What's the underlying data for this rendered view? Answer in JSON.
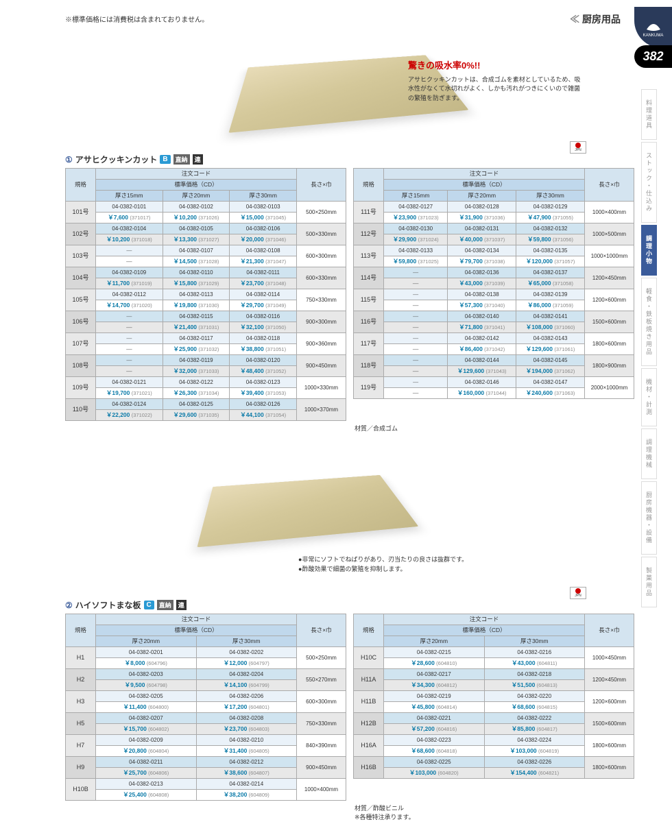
{
  "topNote": "※標準価格には消費税は含まれておりません。",
  "headerCategory": "厨房用品",
  "pageNumber": "382",
  "brandLabel": "KANKUMA",
  "promo": {
    "title": "驚きの吸水率0%!!",
    "text": "アサヒクッキンカットは、合成ゴムを素材としているため、吸水性がなくて水切れがよく、しかも汚れがつきにくいので雑菌の繁殖を防ぎます。"
  },
  "sideTabs": [
    "料理道具",
    "ストック・仕込み",
    "調理小物",
    "軽食・鉄板焼き用品",
    "機材・計測",
    "調理機械",
    "厨房機器・設備",
    "製菓用品"
  ],
  "sideTabActive": 2,
  "section1": {
    "num": "①",
    "title": "アサヒクッキンカット",
    "badge": "B",
    "tags": [
      "直納",
      "連"
    ]
  },
  "section2": {
    "num": "②",
    "title": "ハイソフトまな板",
    "badge": "C",
    "tags": [
      "直納",
      "連"
    ]
  },
  "headers": {
    "spec": "規格",
    "orderCode": "注文コード",
    "stdPrice": "標準価格（CD）",
    "size": "長さ×巾",
    "t15": "厚さ15mm",
    "t20": "厚さ20mm",
    "t30": "厚さ30mm"
  },
  "bullets": [
    "非常にソフトでねばりがあり、刃当たりの良さは抜群です。",
    "酢酸効果で細菌の繁殖を抑制します。"
  ],
  "material1": "材質／合成ゴム",
  "material2": "材質／酢酸ビニル\n※各種特注承ります。",
  "table1L": [
    {
      "spec": "101号",
      "size": "500×250mm",
      "c": [
        [
          "04-0382-0101",
          "04-0382-0102",
          "04-0382-0103"
        ],
        [
          "7,600",
          "10,200",
          "15,000"
        ],
        [
          "371017",
          "371026",
          "371045"
        ]
      ]
    },
    {
      "spec": "102号",
      "size": "500×330mm",
      "c": [
        [
          "04-0382-0104",
          "04-0382-0105",
          "04-0382-0106"
        ],
        [
          "10,200",
          "13,300",
          "20,000"
        ],
        [
          "371018",
          "371027",
          "371046"
        ]
      ]
    },
    {
      "spec": "103号",
      "size": "600×300mm",
      "c": [
        [
          "―",
          "04-0382-0107",
          "04-0382-0108"
        ],
        [
          "―",
          "14,500",
          "21,300"
        ],
        [
          "",
          "371028",
          "371047"
        ]
      ]
    },
    {
      "spec": "104号",
      "size": "600×330mm",
      "c": [
        [
          "04-0382-0109",
          "04-0382-0110",
          "04-0382-0111"
        ],
        [
          "11,700",
          "15,800",
          "23,700"
        ],
        [
          "371019",
          "371029",
          "371048"
        ]
      ]
    },
    {
      "spec": "105号",
      "size": "750×330mm",
      "c": [
        [
          "04-0382-0112",
          "04-0382-0113",
          "04-0382-0114"
        ],
        [
          "14,700",
          "19,800",
          "29,700"
        ],
        [
          "371020",
          "371030",
          "371049"
        ]
      ]
    },
    {
      "spec": "106号",
      "size": "900×300mm",
      "c": [
        [
          "―",
          "04-0382-0115",
          "04-0382-0116"
        ],
        [
          "―",
          "21,400",
          "32,100"
        ],
        [
          "",
          "371031",
          "371050"
        ]
      ]
    },
    {
      "spec": "107号",
      "size": "900×360mm",
      "c": [
        [
          "―",
          "04-0382-0117",
          "04-0382-0118"
        ],
        [
          "―",
          "25,900",
          "38,800"
        ],
        [
          "",
          "371032",
          "371051"
        ]
      ]
    },
    {
      "spec": "108号",
      "size": "900×450mm",
      "c": [
        [
          "―",
          "04-0382-0119",
          "04-0382-0120"
        ],
        [
          "―",
          "32,000",
          "48,400"
        ],
        [
          "",
          "371033",
          "371052"
        ]
      ]
    },
    {
      "spec": "109号",
      "size": "1000×330mm",
      "c": [
        [
          "04-0382-0121",
          "04-0382-0122",
          "04-0382-0123"
        ],
        [
          "19,700",
          "26,300",
          "39,400"
        ],
        [
          "371021",
          "371034",
          "371053"
        ]
      ]
    },
    {
      "spec": "110号",
      "size": "1000×370mm",
      "c": [
        [
          "04-0382-0124",
          "04-0382-0125",
          "04-0382-0126"
        ],
        [
          "22,200",
          "29,600",
          "44,100"
        ],
        [
          "371022",
          "371035",
          "371054"
        ]
      ]
    }
  ],
  "table1R": [
    {
      "spec": "111号",
      "size": "1000×400mm",
      "c": [
        [
          "04-0382-0127",
          "04-0382-0128",
          "04-0382-0129"
        ],
        [
          "23,900",
          "31,900",
          "47,900"
        ],
        [
          "371023",
          "371036",
          "371055"
        ]
      ]
    },
    {
      "spec": "112号",
      "size": "1000×500mm",
      "c": [
        [
          "04-0382-0130",
          "04-0382-0131",
          "04-0382-0132"
        ],
        [
          "29,900",
          "40,000",
          "59,800"
        ],
        [
          "371024",
          "371037",
          "371056"
        ]
      ]
    },
    {
      "spec": "113号",
      "size": "1000×1000mm",
      "c": [
        [
          "04-0382-0133",
          "04-0382-0134",
          "04-0382-0135"
        ],
        [
          "59,800",
          "79,700",
          "120,000"
        ],
        [
          "371025",
          "371038",
          "371057"
        ]
      ]
    },
    {
      "spec": "114号",
      "size": "1200×450mm",
      "c": [
        [
          "―",
          "04-0382-0136",
          "04-0382-0137"
        ],
        [
          "―",
          "43,000",
          "65,000"
        ],
        [
          "",
          "371039",
          "371058"
        ]
      ]
    },
    {
      "spec": "115号",
      "size": "1200×600mm",
      "c": [
        [
          "―",
          "04-0382-0138",
          "04-0382-0139"
        ],
        [
          "―",
          "57,300",
          "86,000"
        ],
        [
          "",
          "371040",
          "371059"
        ]
      ]
    },
    {
      "spec": "116号",
      "size": "1500×600mm",
      "c": [
        [
          "―",
          "04-0382-0140",
          "04-0382-0141"
        ],
        [
          "―",
          "71,800",
          "108,000"
        ],
        [
          "",
          "371041",
          "371060"
        ]
      ]
    },
    {
      "spec": "117号",
      "size": "1800×600mm",
      "c": [
        [
          "―",
          "04-0382-0142",
          "04-0382-0143"
        ],
        [
          "―",
          "86,400",
          "129,600"
        ],
        [
          "",
          "371042",
          "371061"
        ]
      ]
    },
    {
      "spec": "118号",
      "size": "1800×900mm",
      "c": [
        [
          "―",
          "04-0382-0144",
          "04-0382-0145"
        ],
        [
          "―",
          "129,600",
          "194,000"
        ],
        [
          "",
          "371043",
          "371062"
        ]
      ]
    },
    {
      "spec": "119号",
      "size": "2000×1000mm",
      "c": [
        [
          "―",
          "04-0382-0146",
          "04-0382-0147"
        ],
        [
          "―",
          "160,000",
          "240,600"
        ],
        [
          "",
          "371044",
          "371063"
        ]
      ]
    }
  ],
  "table2L": [
    {
      "spec": "H1",
      "size": "500×250mm",
      "c": [
        [
          "04-0382-0201",
          "04-0382-0202"
        ],
        [
          "8,000",
          "12,000"
        ],
        [
          "604796",
          "604797"
        ]
      ]
    },
    {
      "spec": "H2",
      "size": "550×270mm",
      "c": [
        [
          "04-0382-0203",
          "04-0382-0204"
        ],
        [
          "9,500",
          "14,100"
        ],
        [
          "604798",
          "604799"
        ]
      ]
    },
    {
      "spec": "H3",
      "size": "600×300mm",
      "c": [
        [
          "04-0382-0205",
          "04-0382-0206"
        ],
        [
          "11,400",
          "17,200"
        ],
        [
          "604800",
          "604801"
        ]
      ]
    },
    {
      "spec": "H5",
      "size": "750×330mm",
      "c": [
        [
          "04-0382-0207",
          "04-0382-0208"
        ],
        [
          "15,700",
          "23,700"
        ],
        [
          "604802",
          "604803"
        ]
      ]
    },
    {
      "spec": "H7",
      "size": "840×390mm",
      "c": [
        [
          "04-0382-0209",
          "04-0382-0210"
        ],
        [
          "20,800",
          "31,400"
        ],
        [
          "604804",
          "604805"
        ]
      ]
    },
    {
      "spec": "H9",
      "size": "900×450mm",
      "c": [
        [
          "04-0382-0211",
          "04-0382-0212"
        ],
        [
          "25,700",
          "38,600"
        ],
        [
          "604806",
          "604807"
        ]
      ]
    },
    {
      "spec": "H10B",
      "size": "1000×400mm",
      "c": [
        [
          "04-0382-0213",
          "04-0382-0214"
        ],
        [
          "25,400",
          "38,200"
        ],
        [
          "604808",
          "604809"
        ]
      ]
    }
  ],
  "table2R": [
    {
      "spec": "H10C",
      "size": "1000×450mm",
      "c": [
        [
          "04-0382-0215",
          "04-0382-0216"
        ],
        [
          "28,600",
          "43,000"
        ],
        [
          "604810",
          "604811"
        ]
      ]
    },
    {
      "spec": "H11A",
      "size": "1200×450mm",
      "c": [
        [
          "04-0382-0217",
          "04-0382-0218"
        ],
        [
          "34,300",
          "51,500"
        ],
        [
          "604812",
          "604813"
        ]
      ]
    },
    {
      "spec": "H11B",
      "size": "1200×600mm",
      "c": [
        [
          "04-0382-0219",
          "04-0382-0220"
        ],
        [
          "45,800",
          "68,600"
        ],
        [
          "604814",
          "604815"
        ]
      ]
    },
    {
      "spec": "H12B",
      "size": "1500×600mm",
      "c": [
        [
          "04-0382-0221",
          "04-0382-0222"
        ],
        [
          "57,200",
          "85,800"
        ],
        [
          "604816",
          "604817"
        ]
      ]
    },
    {
      "spec": "H16A",
      "size": "1800×600mm",
      "c": [
        [
          "04-0382-0223",
          "04-0382-0224"
        ],
        [
          "68,600",
          "103,000"
        ],
        [
          "604818",
          "604819"
        ]
      ]
    },
    {
      "spec": "H16B",
      "size": "1800×600mm",
      "c": [
        [
          "04-0382-0225",
          "04-0382-0226"
        ],
        [
          "103,000",
          "154,400"
        ],
        [
          "604820",
          "604821"
        ]
      ]
    }
  ],
  "jpnLabel": "JPN"
}
